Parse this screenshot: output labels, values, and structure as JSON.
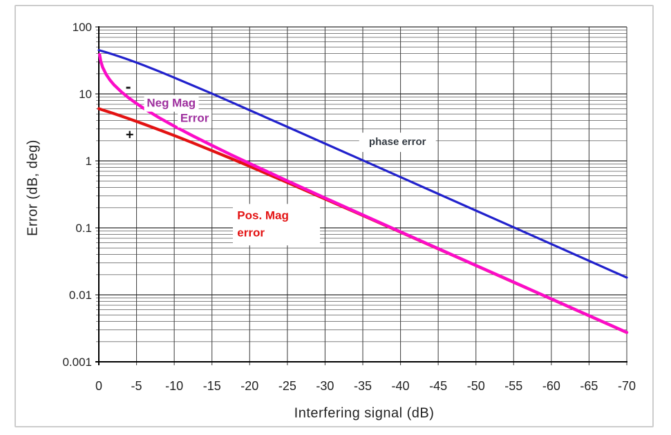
{
  "figure": {
    "background": "#ffffff",
    "border_color": "#cccccc"
  },
  "chart_data": {
    "type": "line",
    "title": "",
    "xlabel": "Interfering signal (dB)",
    "ylabel": "Error (dB, deg)",
    "x_scale": "linear",
    "y_scale": "log",
    "xlim": [
      0,
      -70
    ],
    "ylim": [
      0.001,
      100
    ],
    "grid": true,
    "legend_position": "inline-annotations",
    "x_ticks": [
      0,
      -5,
      -10,
      -15,
      -20,
      -25,
      -30,
      -35,
      -40,
      -45,
      -50,
      -55,
      -60,
      -65,
      -70
    ],
    "x_tick_labels": [
      "0",
      "-5",
      "-10",
      "-15",
      "-20",
      "-25",
      "-30",
      "-35",
      "-40",
      "-45",
      "-50",
      "-55",
      "-60",
      "-65",
      "-70"
    ],
    "y_ticks": [
      100,
      10,
      1,
      0.1,
      0.01,
      0.001
    ],
    "y_tick_labels": [
      "100",
      "10",
      "1",
      "0.1",
      "0.01",
      "0.001"
    ],
    "grid_colors": {
      "minor_h": "#6e6e6e",
      "major_h": "#2a2a2a",
      "vertical": "#4a4a4a",
      "axis": "#000000"
    },
    "series": [
      {
        "name": "phase error",
        "color": "#2121cc",
        "width": 3.2,
        "x": [
          0,
          -1,
          -2,
          -3,
          -4,
          -5,
          -6,
          -8,
          -10,
          -12.5,
          -15,
          -17.5,
          -20,
          -25,
          -30,
          -35,
          -40,
          -45,
          -50,
          -55,
          -60,
          -65,
          -70
        ],
        "y": [
          45,
          41.7,
          38.5,
          35.3,
          32.3,
          29.4,
          26.6,
          21.7,
          17.5,
          13.3,
          10.1,
          7.6,
          5.71,
          3.22,
          1.81,
          1.02,
          0.573,
          0.322,
          0.181,
          0.102,
          0.0573,
          0.0322,
          0.0181
        ]
      },
      {
        "name": "Pos. Mag error",
        "color": "#e31212",
        "width": 4.2,
        "x": [
          0,
          -1,
          -2,
          -3,
          -4,
          -5,
          -6,
          -8,
          -10,
          -12.5,
          -15,
          -17.5,
          -20,
          -25,
          -30,
          -35,
          -40,
          -45,
          -50,
          -55,
          -60,
          -65,
          -70
        ],
        "y": [
          6.02,
          5.53,
          5.08,
          4.65,
          4.25,
          3.88,
          3.53,
          2.91,
          2.39,
          1.85,
          1.42,
          1.09,
          0.828,
          0.475,
          0.27,
          0.153,
          0.0864,
          0.0486,
          0.0274,
          0.0154,
          0.00866,
          0.00487,
          0.00274
        ]
      },
      {
        "name": "Neg Mag Error",
        "color": "#fb0cc8",
        "width": 4.4,
        "x": [
          -0.1,
          -0.25,
          -0.5,
          -1,
          -1.5,
          -2,
          -3,
          -4,
          -5,
          -6,
          -8,
          -10,
          -12.5,
          -15,
          -17.5,
          -20,
          -25,
          -30,
          -35,
          -40,
          -45,
          -50,
          -55,
          -60,
          -65,
          -70
        ],
        "y": [
          38.8,
          31.0,
          25.1,
          19.3,
          16.0,
          13.7,
          10.7,
          8.66,
          7.18,
          6.04,
          4.41,
          3.3,
          2.35,
          1.7,
          1.24,
          0.915,
          0.503,
          0.279,
          0.156,
          0.0873,
          0.049,
          0.0275,
          0.0155,
          0.00869,
          0.00489,
          0.00275
        ]
      }
    ],
    "annotations": [
      {
        "id": "neg-mag-label-line1",
        "text": "Neg Mag",
        "x_db": -9.6,
        "y_val": 7.2,
        "color": "#9e2f9e",
        "size": 17,
        "weight": 700,
        "bg": "#ffffff",
        "align": "center",
        "pad": "0px 4px"
      },
      {
        "id": "neg-mag-label-line2",
        "text": "Error",
        "x_db": -12.7,
        "y_val": 4.26,
        "color": "#9e2f9e",
        "size": 17,
        "weight": 700,
        "bg": "#ffffff",
        "align": "center",
        "pad": "0px 4px"
      },
      {
        "id": "phase-error-label",
        "text": "phase error",
        "x_db": -39.6,
        "y_val": 1.9,
        "color": "#333a42",
        "size": 15,
        "weight": 700,
        "bg": "#ffffff",
        "align": "center",
        "pad": "3px 14px"
      },
      {
        "id": "pos-mag-label",
        "text": "Pos. Mag\nerror",
        "x_db": -17.8,
        "y_val": 0.112,
        "color": "#e31212",
        "size": 17,
        "weight": 700,
        "bg": "#ffffff",
        "align": "left",
        "pad": "5px 45px 5px 6px"
      },
      {
        "id": "minus-marker",
        "text": "-",
        "x_db": -3.9,
        "y_val": 12.4,
        "color": "#111111",
        "size": 24,
        "weight": 700,
        "bg": "",
        "align": "center",
        "pad": "0px"
      },
      {
        "id": "plus-marker",
        "text": "+",
        "x_db": -4.1,
        "y_val": 2.41,
        "color": "#111111",
        "size": 20,
        "weight": 600,
        "bg": "",
        "align": "center",
        "pad": "0px"
      }
    ]
  }
}
